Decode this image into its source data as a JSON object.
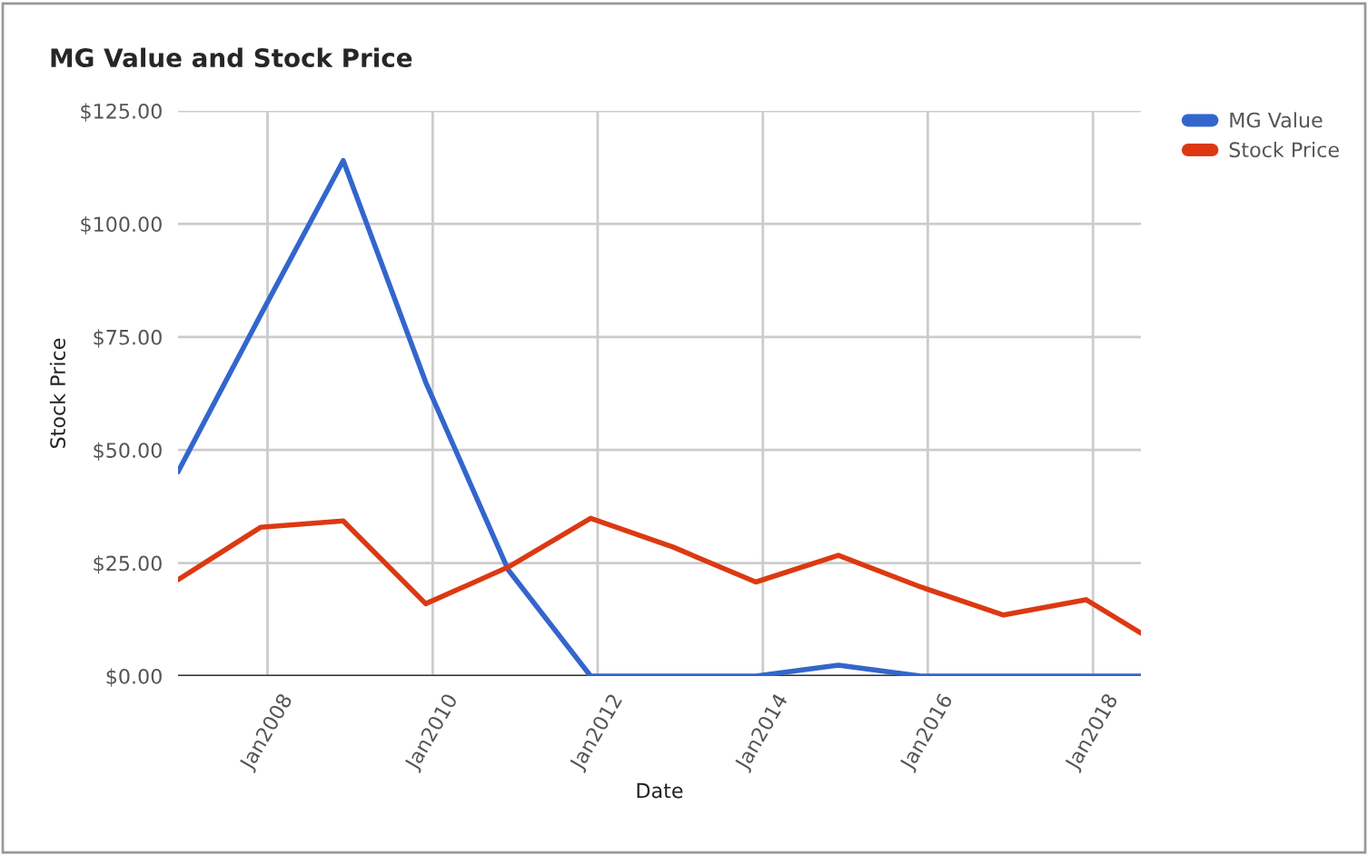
{
  "chart_data": {
    "type": "line",
    "title": "MG Value and Stock Price",
    "xlabel": "Date",
    "ylabel": "Stock Price",
    "x": [
      "2006-12",
      "2007-12",
      "2008-12",
      "2009-12",
      "2010-12",
      "2011-12",
      "2012-12",
      "2013-12",
      "2014-12",
      "2015-12",
      "2016-12",
      "2017-12",
      "2018-08"
    ],
    "series": [
      {
        "name": "MG Value",
        "color": "#3366cc",
        "values": [
          45.2,
          79.8,
          114,
          65,
          23.5,
          0,
          0,
          0,
          2.4,
          0,
          0,
          0,
          0
        ]
      },
      {
        "name": "Stock Price",
        "color": "#dc3912",
        "values": [
          21.3,
          32.9,
          34.3,
          16.0,
          24.1,
          34.9,
          28.5,
          20.8,
          26.7,
          19.7,
          13.5,
          16.9,
          9.5
        ]
      }
    ],
    "xlim": [
      "2006-12",
      "2018-08"
    ],
    "xticks": [
      {
        "value": "2008-01",
        "label": "Jan2008"
      },
      {
        "value": "2010-01",
        "label": "Jan2010"
      },
      {
        "value": "2012-01",
        "label": "Jan2012"
      },
      {
        "value": "2014-01",
        "label": "Jan2014"
      },
      {
        "value": "2016-01",
        "label": "Jan2016"
      },
      {
        "value": "2018-01",
        "label": "Jan2018"
      }
    ],
    "ylim": [
      0,
      125
    ],
    "yticks": [
      {
        "value": 0,
        "label": "$0.00"
      },
      {
        "value": 25,
        "label": "$25.00"
      },
      {
        "value": 50,
        "label": "$50.00"
      },
      {
        "value": 75,
        "label": "$75.00"
      },
      {
        "value": 100,
        "label": "$100.00"
      },
      {
        "value": 125,
        "label": "$125.00"
      }
    ],
    "grid": true,
    "legend": "top right",
    "marker": "none",
    "line_style": "solid"
  }
}
